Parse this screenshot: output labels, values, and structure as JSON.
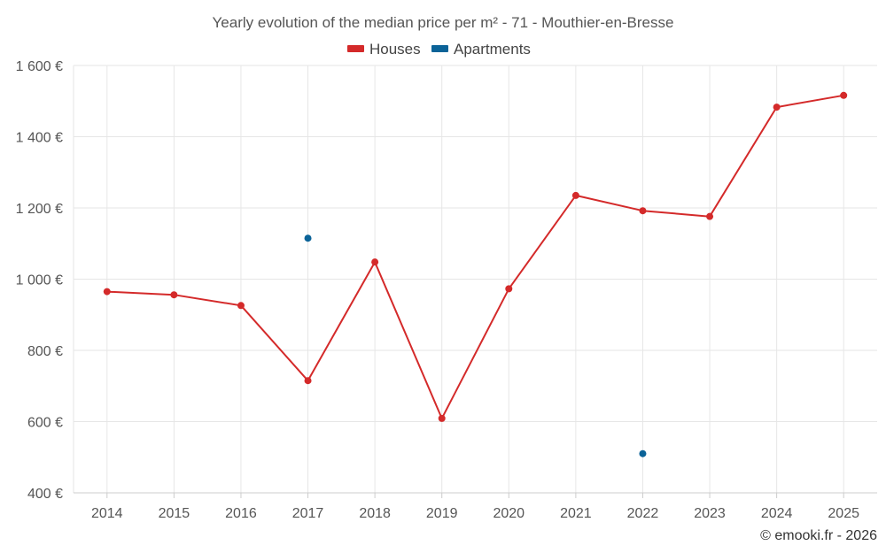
{
  "chart_data": {
    "type": "line",
    "title": "Yearly evolution of the median price per m² - 71 - Mouthier-en-Bresse",
    "categories": [
      "2014",
      "2015",
      "2016",
      "2017",
      "2018",
      "2019",
      "2020",
      "2021",
      "2022",
      "2023",
      "2024",
      "2025"
    ],
    "ylim": [
      400,
      1600
    ],
    "yticks": [
      400,
      600,
      800,
      1000,
      1200,
      1400,
      1600
    ],
    "ytick_labels": [
      "400 €",
      "600 €",
      "800 €",
      "1 000 €",
      "1 200 €",
      "1 400 €",
      "1 600 €"
    ],
    "grid": true,
    "legend_position": "top-center",
    "series": [
      {
        "name": "Houses",
        "color": "#d42a2a",
        "values": [
          965,
          956,
          926,
          715,
          1048,
          609,
          973,
          1235,
          1192,
          1176,
          1483,
          1516
        ]
      },
      {
        "name": "Apartments",
        "color": "#0b6398",
        "values": [
          null,
          null,
          null,
          1115,
          null,
          null,
          null,
          null,
          510,
          null,
          null,
          null
        ]
      }
    ]
  },
  "credit": "© emooki.fr - 2026"
}
